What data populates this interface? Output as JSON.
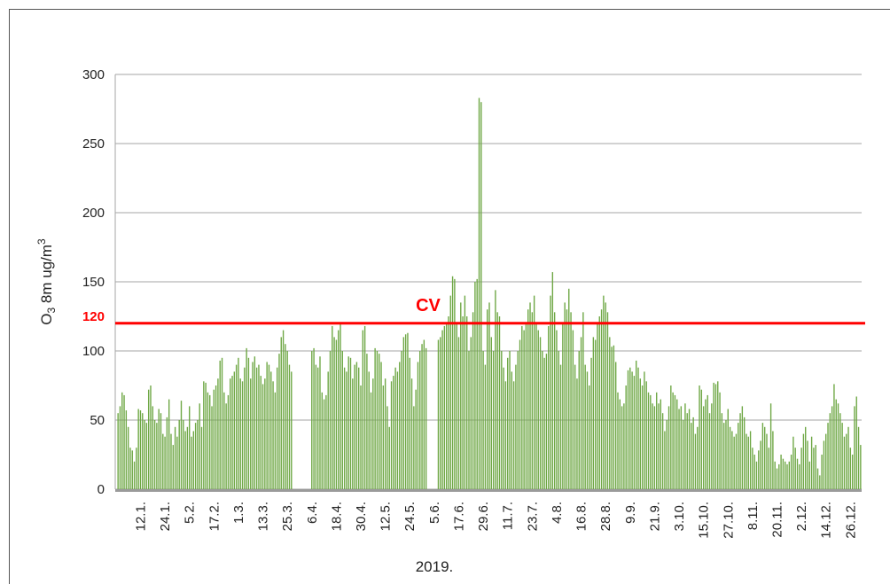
{
  "chart_data": {
    "type": "bar",
    "y_label": {
      "base": "O",
      "sub": "3",
      "main": " 8m ug/m",
      "sup": "3"
    },
    "x_label": "2019.",
    "color": "#6ea744",
    "ylim": [
      0,
      300
    ],
    "yticks": [
      0,
      50,
      100,
      150,
      200,
      250,
      300
    ],
    "grid": true,
    "reference_line": {
      "value": 120,
      "label": "120",
      "text": "CV",
      "color": "#ff0000"
    },
    "categories": [
      null,
      null,
      null,
      null,
      null,
      null,
      null,
      null,
      null,
      null,
      null,
      "12.1.",
      null,
      null,
      null,
      null,
      null,
      null,
      null,
      null,
      null,
      null,
      null,
      "24.1.",
      null,
      null,
      null,
      null,
      null,
      null,
      null,
      null,
      null,
      null,
      null,
      "5.2.",
      null,
      null,
      null,
      null,
      null,
      null,
      null,
      null,
      null,
      null,
      null,
      "17.2.",
      null,
      null,
      null,
      null,
      null,
      null,
      null,
      null,
      null,
      null,
      null,
      "1.3.",
      null,
      null,
      null,
      null,
      null,
      null,
      null,
      null,
      null,
      null,
      null,
      "13.3.",
      null,
      null,
      null,
      null,
      null,
      null,
      null,
      null,
      null,
      null,
      null,
      "25.3.",
      null,
      null,
      null,
      null,
      null,
      null,
      null,
      null,
      null,
      null,
      null,
      "6.4.",
      null,
      null,
      null,
      null,
      null,
      null,
      null,
      null,
      null,
      null,
      null,
      "18.4.",
      null,
      null,
      null,
      null,
      null,
      null,
      null,
      null,
      null,
      null,
      null,
      "30.4.",
      null,
      null,
      null,
      null,
      null,
      null,
      null,
      null,
      null,
      null,
      null,
      "12.5.",
      null,
      null,
      null,
      null,
      null,
      null,
      null,
      null,
      null,
      null,
      null,
      "24.5.",
      null,
      null,
      null,
      null,
      null,
      null,
      null,
      null,
      null,
      null,
      null,
      "5.6.",
      null,
      null,
      null,
      null,
      null,
      null,
      null,
      null,
      null,
      null,
      null,
      "17.6.",
      null,
      null,
      null,
      null,
      null,
      null,
      null,
      null,
      null,
      null,
      null,
      "29.6.",
      null,
      null,
      null,
      null,
      null,
      null,
      null,
      null,
      null,
      null,
      null,
      "11.7.",
      null,
      null,
      null,
      null,
      null,
      null,
      null,
      null,
      null,
      null,
      null,
      "23.7.",
      null,
      null,
      null,
      null,
      null,
      null,
      null,
      null,
      null,
      null,
      null,
      "4.8.",
      null,
      null,
      null,
      null,
      null,
      null,
      null,
      null,
      null,
      null,
      null,
      "16.8.",
      null,
      null,
      null,
      null,
      null,
      null,
      null,
      null,
      null,
      null,
      null,
      "28.8.",
      null,
      null,
      null,
      null,
      null,
      null,
      null,
      null,
      null,
      null,
      null,
      "9.9.",
      null,
      null,
      null,
      null,
      null,
      null,
      null,
      null,
      null,
      null,
      null,
      "21.9.",
      null,
      null,
      null,
      null,
      null,
      null,
      null,
      null,
      null,
      null,
      null,
      "3.10.",
      null,
      null,
      null,
      null,
      null,
      null,
      null,
      null,
      null,
      null,
      null,
      "15.10.",
      null,
      null,
      null,
      null,
      null,
      null,
      null,
      null,
      null,
      null,
      null,
      "27.10.",
      null,
      null,
      null,
      null,
      null,
      null,
      null,
      null,
      null,
      null,
      null,
      "8.11.",
      null,
      null,
      null,
      null,
      null,
      null,
      null,
      null,
      null,
      null,
      null,
      "20.11.",
      null,
      null,
      null,
      null,
      null,
      null,
      null,
      null,
      null,
      null,
      null,
      "2.12.",
      null,
      null,
      null,
      null,
      null,
      null,
      null,
      null,
      null,
      null,
      null,
      "14.12.",
      null,
      null,
      null,
      null,
      null,
      null,
      null,
      null,
      null,
      null,
      null,
      "26.12.",
      null,
      null,
      null,
      null,
      null
    ],
    "values": [
      55,
      60,
      70,
      68,
      57,
      45,
      30,
      28,
      20,
      30,
      58,
      57,
      55,
      50,
      48,
      72,
      75,
      60,
      50,
      48,
      58,
      55,
      40,
      38,
      52,
      65,
      40,
      32,
      45,
      38,
      50,
      64,
      50,
      42,
      45,
      60,
      38,
      42,
      48,
      50,
      62,
      45,
      78,
      77,
      70,
      68,
      60,
      72,
      75,
      80,
      93,
      95,
      70,
      62,
      68,
      80,
      82,
      85,
      90,
      95,
      80,
      78,
      88,
      102,
      95,
      80,
      92,
      96,
      88,
      90,
      82,
      76,
      80,
      92,
      90,
      85,
      78,
      70,
      88,
      98,
      110,
      115,
      105,
      100,
      90,
      85,
      null,
      null,
      null,
      null,
      null,
      null,
      null,
      null,
      null,
      100,
      102,
      90,
      88,
      96,
      70,
      65,
      68,
      85,
      100,
      118,
      110,
      108,
      115,
      120,
      100,
      88,
      85,
      96,
      95,
      80,
      90,
      92,
      88,
      75,
      115,
      118,
      98,
      85,
      70,
      80,
      102,
      100,
      98,
      92,
      75,
      80,
      60,
      45,
      78,
      82,
      88,
      85,
      92,
      100,
      110,
      112,
      113,
      95,
      80,
      60,
      72,
      92,
      100,
      105,
      108,
      102,
      null,
      null,
      null,
      null,
      null,
      108,
      110,
      115,
      118,
      120,
      125,
      140,
      154,
      152,
      120,
      110,
      135,
      125,
      140,
      125,
      100,
      110,
      128,
      150,
      152,
      283,
      280,
      100,
      90,
      130,
      135,
      110,
      100,
      144,
      128,
      125,
      100,
      88,
      78,
      95,
      100,
      85,
      78,
      90,
      100,
      108,
      118,
      115,
      120,
      130,
      135,
      128,
      140,
      120,
      115,
      110,
      100,
      95,
      98,
      118,
      140,
      157,
      128,
      115,
      100,
      90,
      120,
      135,
      130,
      145,
      128,
      115,
      90,
      80,
      100,
      110,
      128,
      90,
      85,
      75,
      95,
      110,
      108,
      120,
      125,
      130,
      140,
      135,
      128,
      110,
      103,
      104,
      92,
      70,
      65,
      60,
      62,
      75,
      86,
      88,
      85,
      82,
      93,
      88,
      80,
      75,
      85,
      78,
      70,
      68,
      62,
      60,
      70,
      62,
      65,
      55,
      42,
      50,
      60,
      75,
      70,
      68,
      65,
      58,
      60,
      50,
      62,
      55,
      58,
      48,
      52,
      40,
      45,
      75,
      72,
      60,
      65,
      68,
      55,
      62,
      77,
      76,
      78,
      70,
      55,
      48,
      50,
      58,
      45,
      42,
      38,
      40,
      48,
      55,
      60,
      52,
      40,
      38,
      42,
      30,
      25,
      20,
      28,
      35,
      48,
      45,
      40,
      30,
      62,
      42,
      20,
      15,
      18,
      25,
      22,
      20,
      18,
      20,
      25,
      38,
      30,
      22,
      18,
      30,
      40,
      45,
      35,
      20,
      38,
      30,
      32,
      15,
      10,
      25,
      35,
      40,
      48,
      55,
      60,
      76,
      65,
      62,
      55,
      48,
      38,
      40,
      45,
      30,
      25,
      60,
      67,
      45,
      32
    ]
  }
}
